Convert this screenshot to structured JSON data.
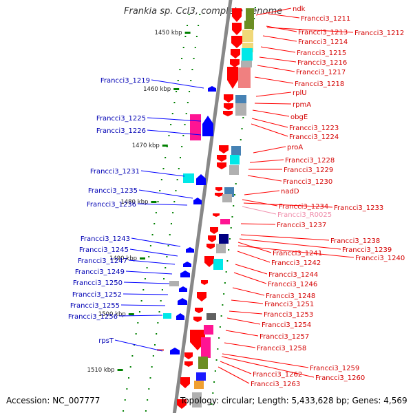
{
  "title": "Frankia sp. CcI3, complete genome",
  "footer": {
    "accession": "Accession: NC_007777",
    "topology": "Topology: circular; Length: 5,433,628 bp; Genes: 4,569"
  },
  "colors": {
    "forward": "#0000ff",
    "reverse": "#ff0000",
    "backbone": "#888888",
    "tick": "#008000",
    "rna_label": "#f08caa",
    "hit_cyan": "#00e8e8",
    "hit_olive": "#6b8e23",
    "hit_khaki": "#f0d878",
    "hit_pink": "#ff1493",
    "hit_navy": "#000080",
    "hit_orange": "#f0a030",
    "hit_gray": "#b0b0b0"
  },
  "kbp_labels": [
    "1450 kbp",
    "1460 kbp",
    "1470 kbp",
    "1480 kbp",
    "1490 kbp",
    "1500 kbp",
    "1510 kbp"
  ],
  "right_labels": [
    "ndk",
    "Francci3_1211",
    "Francci3_1213",
    "Francci3_1212",
    "Francci3_1214",
    "Francci3_1215",
    "Francci3_1216",
    "Francci3_1217",
    "Francci3_1218",
    "rplU",
    "rpmA",
    "obgE",
    "Francci3_1223",
    "Francci3_1224",
    "proA",
    "Francci3_1228",
    "Francci3_1229",
    "Francci3_1230",
    "nadD",
    "Francci3_1234",
    "Francci3_1233",
    "Francci3_R0025",
    "Francci3_1237",
    "Francci3_1238",
    "Francci3_1239",
    "Francci3_1241",
    "Francci3_1240",
    "Francci3_1242",
    "Francci3_1244",
    "Francci3_1246",
    "Francci3_1248",
    "Francci3_1251",
    "Francci3_1253",
    "Francci3_1254",
    "Francci3_1257",
    "Francci3_1258",
    "Francci3_1259",
    "Francci3_1260",
    "Francci3_1262",
    "Francci3_1263"
  ],
  "left_labels": [
    "Francci3_1219",
    "Francci3_1225",
    "Francci3_1226",
    "Francci3_1231",
    "Francci3_1235",
    "Francci3_1236",
    "Francci3_1243",
    "Francci3_1245",
    "Francci3_1247",
    "Francci3_1249",
    "Francci3_1250",
    "Francci3_1252",
    "Francci3_1255",
    "Francci3_1256",
    "rpsT"
  ]
}
